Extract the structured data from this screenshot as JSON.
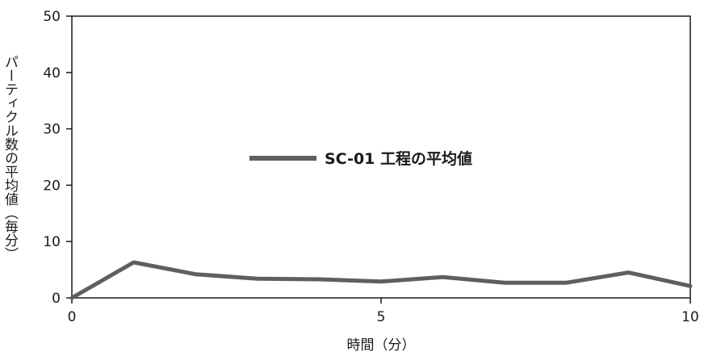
{
  "chart_data": {
    "type": "line",
    "xlabel": "時間（分）",
    "ylabel": "パーティクル数の平均値（毎分）",
    "xlim": [
      0,
      10
    ],
    "ylim": [
      0,
      50
    ],
    "x_ticks": [
      0,
      5,
      10
    ],
    "y_ticks": [
      0,
      10,
      20,
      30,
      40,
      50
    ],
    "grid": false,
    "legend_position": "center",
    "series": [
      {
        "name": "SC-01 工程の平均値",
        "color": "#5f5f5f",
        "x": [
          0,
          1,
          2,
          3,
          4,
          5,
          6,
          7,
          8,
          9,
          10
        ],
        "y": [
          0,
          6.3,
          4.2,
          3.4,
          3.3,
          2.9,
          3.7,
          2.7,
          2.7,
          4.5,
          2.1
        ]
      }
    ]
  }
}
